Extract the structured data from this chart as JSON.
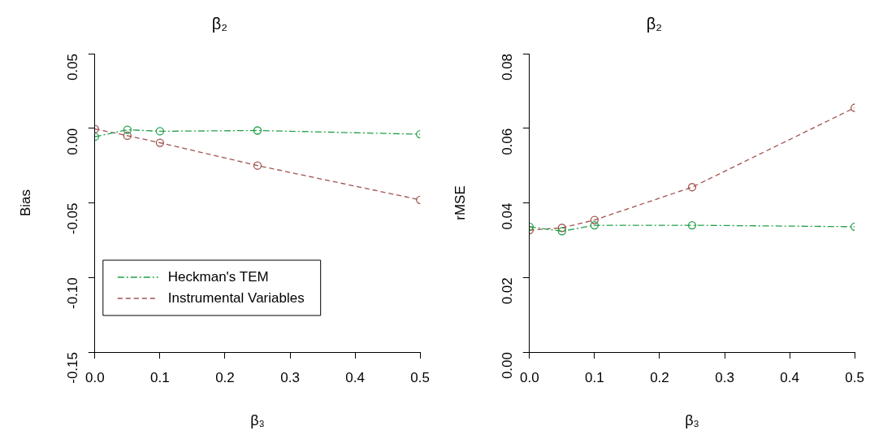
{
  "chart_data": [
    {
      "type": "line",
      "title": "β₂",
      "xlabel": "β₃",
      "ylabel": "Bias",
      "x": [
        0,
        0.05,
        0.1,
        0.25,
        0.5
      ],
      "xlim": [
        0,
        0.5
      ],
      "xticks": [
        {
          "value": 0,
          "label": "0.0"
        },
        {
          "value": 0.1,
          "label": "0.1"
        },
        {
          "value": 0.2,
          "label": "0.2"
        },
        {
          "value": 0.3,
          "label": "0.3"
        },
        {
          "value": 0.4,
          "label": "0.4"
        },
        {
          "value": 0.5,
          "label": "0.5"
        }
      ],
      "ylim": [
        -0.15,
        0.05
      ],
      "yticks": [
        {
          "value": -0.15,
          "label": "-0.15"
        },
        {
          "value": -0.1,
          "label": "-0.10"
        },
        {
          "value": -0.05,
          "label": "-0.05"
        },
        {
          "value": 0,
          "label": "0.00"
        },
        {
          "value": 0.05,
          "label": "0.05"
        }
      ],
      "marker": "circle",
      "grid": false,
      "legend": "bottom left",
      "series": [
        {
          "name": "Heckman's TEM",
          "color": "#22a04a",
          "line_style": "dashdot",
          "values": [
            -0.0057,
            -0.001,
            -0.002,
            -0.0015,
            -0.004
          ]
        },
        {
          "name": "Instrumental Variables",
          "color": "#a0524f",
          "line_style": "dashed",
          "values": [
            -0.0005,
            -0.005,
            -0.0097,
            -0.025,
            -0.048
          ]
        }
      ]
    },
    {
      "type": "line",
      "title": "β₂",
      "xlabel": "β₃",
      "ylabel": "rMSE",
      "x": [
        0,
        0.05,
        0.1,
        0.25,
        0.5
      ],
      "xlim": [
        0,
        0.5
      ],
      "xticks": [
        {
          "value": 0,
          "label": "0.0"
        },
        {
          "value": 0.1,
          "label": "0.1"
        },
        {
          "value": 0.2,
          "label": "0.2"
        },
        {
          "value": 0.3,
          "label": "0.3"
        },
        {
          "value": 0.4,
          "label": "0.4"
        },
        {
          "value": 0.5,
          "label": "0.5"
        }
      ],
      "ylim": [
        0,
        0.08
      ],
      "yticks": [
        {
          "value": 0,
          "label": "0.00"
        },
        {
          "value": 0.02,
          "label": "0.02"
        },
        {
          "value": 0.04,
          "label": "0.04"
        },
        {
          "value": 0.06,
          "label": "0.06"
        },
        {
          "value": 0.08,
          "label": "0.08"
        }
      ],
      "marker": "circle",
      "grid": false,
      "series": [
        {
          "color": "#22a04a",
          "line_style": "dashdot",
          "values": [
            0.0336,
            0.0324,
            0.034,
            0.034,
            0.0336
          ]
        },
        {
          "color": "#a0524f",
          "line_style": "dashed",
          "values": [
            0.0327,
            0.0333,
            0.0354,
            0.0442,
            0.0655
          ]
        }
      ]
    }
  ]
}
